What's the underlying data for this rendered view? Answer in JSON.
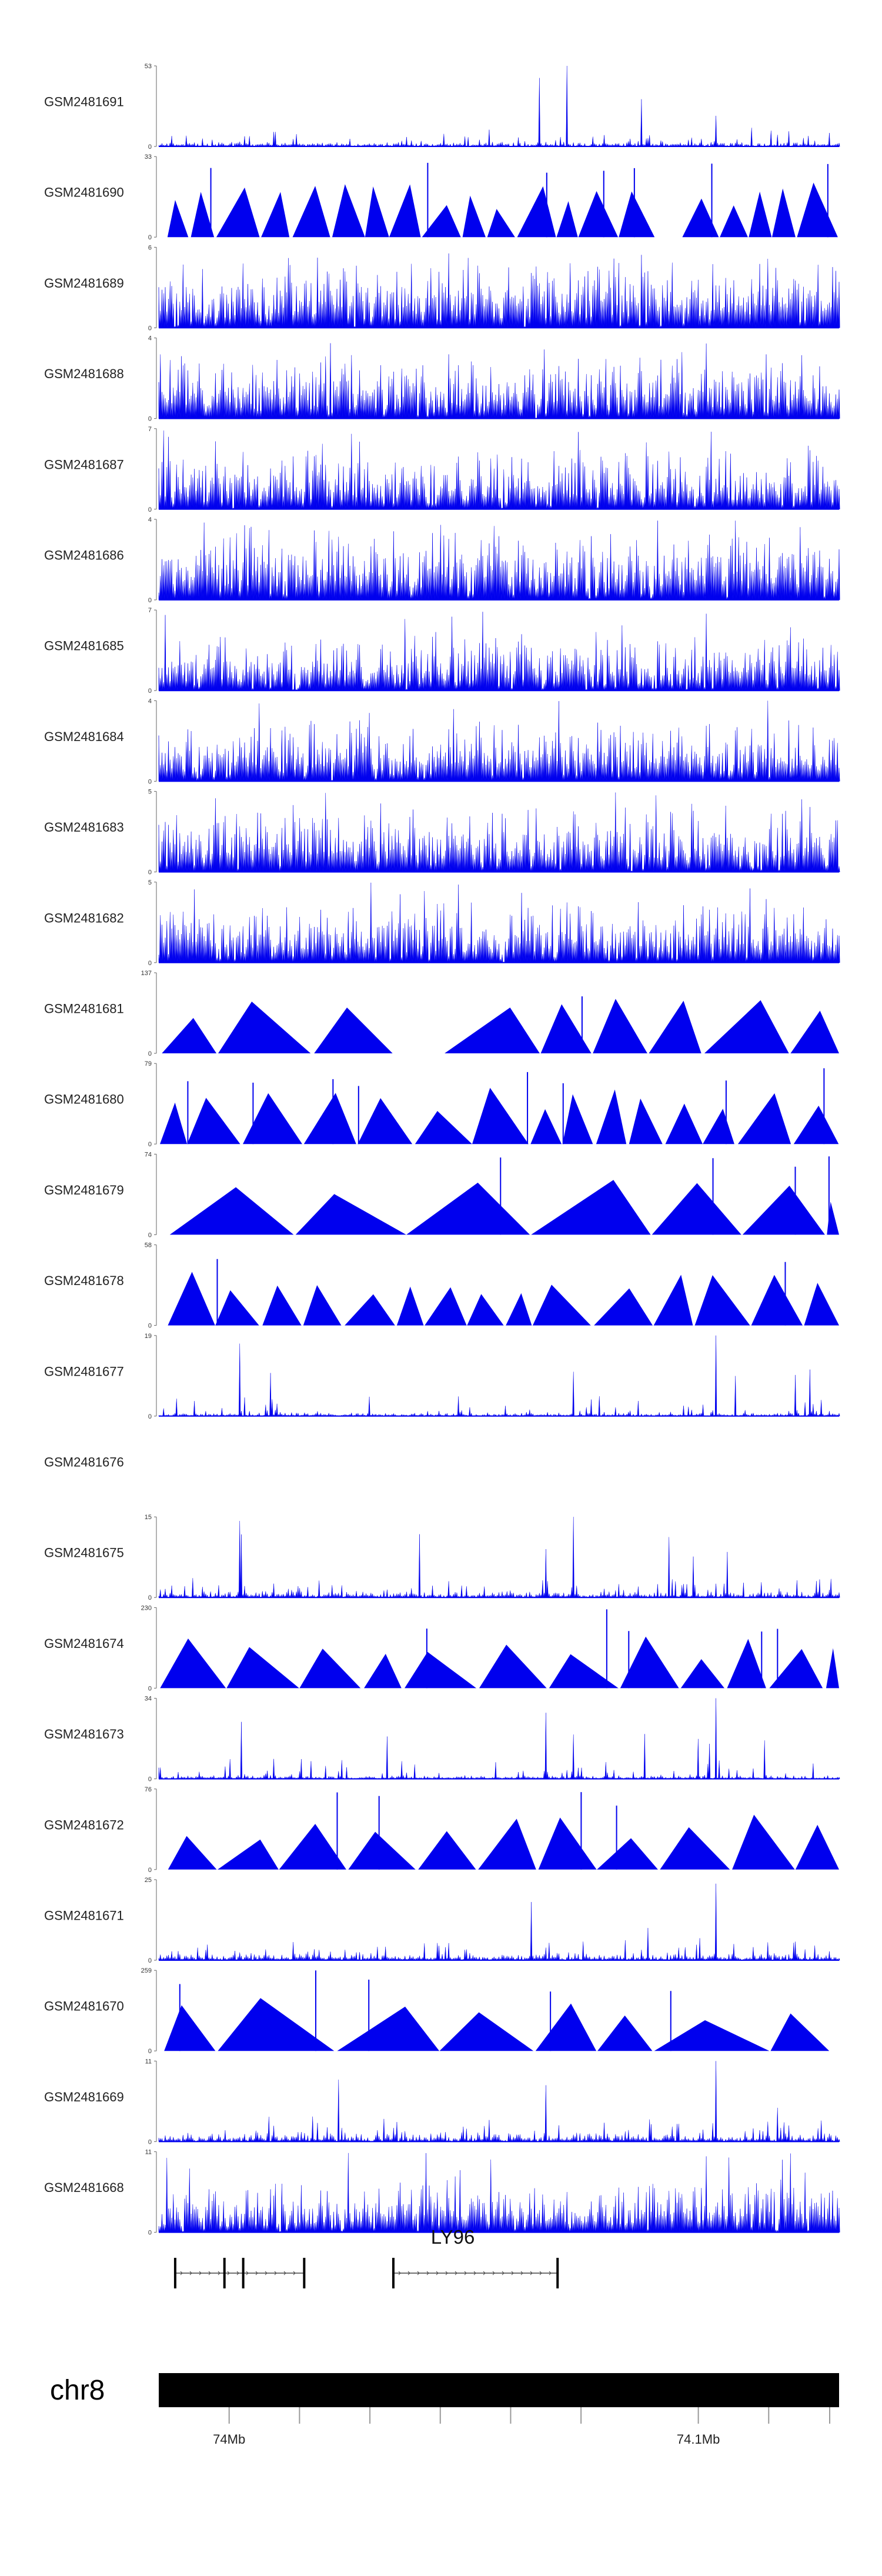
{
  "chart_data": {
    "type": "area",
    "title": "",
    "color": "#0000ee",
    "region": {
      "chrom": "chr8",
      "start": 73985000,
      "end": 74130000
    },
    "tracks": [
      {
        "name": "GSM2481691",
        "ymax": "53",
        "style": "peaks",
        "seed": 11,
        "base": 0.1,
        "noise": 0.12,
        "spikes": [
          [
            0.56,
            0.85
          ],
          [
            0.6,
            1.0
          ],
          [
            0.82,
            0.38
          ],
          [
            0.17,
            0.18
          ]
        ]
      },
      {
        "name": "GSM2481690",
        "ymax": "33",
        "style": "tri",
        "seed": 12,
        "n": 22,
        "gaps": [
          0.72,
          0.76
        ]
      },
      {
        "name": "GSM2481689",
        "ymax": "6",
        "style": "dense",
        "seed": 13,
        "base": 0.35,
        "noise": 0.55
      },
      {
        "name": "GSM2481688",
        "ymax": "4",
        "style": "dense",
        "seed": 14,
        "base": 0.3,
        "noise": 0.55
      },
      {
        "name": "GSM2481687",
        "ymax": "7",
        "style": "dense",
        "seed": 15,
        "base": 0.25,
        "noise": 0.55
      },
      {
        "name": "GSM2481686",
        "ymax": "4",
        "style": "dense",
        "seed": 16,
        "base": 0.4,
        "noise": 0.55
      },
      {
        "name": "GSM2481685",
        "ymax": "7",
        "style": "dense",
        "seed": 17,
        "base": 0.25,
        "noise": 0.5
      },
      {
        "name": "GSM2481684",
        "ymax": "4",
        "style": "dense",
        "seed": 18,
        "base": 0.25,
        "noise": 0.55
      },
      {
        "name": "GSM2481683",
        "ymax": "5",
        "style": "dense",
        "seed": 19,
        "base": 0.35,
        "noise": 0.5
      },
      {
        "name": "GSM2481682",
        "ymax": "5",
        "style": "dense",
        "seed": 20,
        "base": 0.3,
        "noise": 0.5
      },
      {
        "name": "GSM2481681",
        "ymax": "137",
        "style": "tri",
        "seed": 21,
        "n": 10,
        "gaps": [
          0.28,
          0.42
        ]
      },
      {
        "name": "GSM2481680",
        "ymax": "79",
        "style": "tri",
        "seed": 22,
        "n": 16,
        "gaps": []
      },
      {
        "name": "GSM2481679",
        "ymax": "74",
        "style": "tri",
        "seed": 23,
        "n": 7,
        "gaps": []
      },
      {
        "name": "GSM2481678",
        "ymax": "58",
        "style": "tri",
        "seed": 24,
        "n": 16,
        "gaps": []
      },
      {
        "name": "GSM2481677",
        "ymax": "19",
        "style": "peaks",
        "seed": 25,
        "base": 0.06,
        "noise": 0.12,
        "spikes": [
          [
            0.12,
            0.9
          ],
          [
            0.82,
            1.0
          ],
          [
            0.61,
            0.55
          ]
        ]
      },
      {
        "name": "GSM2481676",
        "ymax": "",
        "style": "empty",
        "seed": 26
      },
      {
        "name": "GSM2481675",
        "ymax": "15",
        "style": "peaks",
        "seed": 27,
        "base": 0.1,
        "noise": 0.22,
        "spikes": [
          [
            0.12,
            0.95
          ],
          [
            0.61,
            1.0
          ],
          [
            0.75,
            0.75
          ],
          [
            0.57,
            0.6
          ]
        ]
      },
      {
        "name": "GSM2481674",
        "ymax": "230",
        "style": "tri",
        "seed": 28,
        "n": 13,
        "gaps": []
      },
      {
        "name": "GSM2481673",
        "ymax": "34",
        "style": "peaks",
        "seed": 29,
        "base": 0.06,
        "noise": 0.12,
        "spikes": [
          [
            0.57,
            0.82
          ],
          [
            0.61,
            0.55
          ],
          [
            0.82,
            1.0
          ]
        ]
      },
      {
        "name": "GSM2481672",
        "ymax": "76",
        "style": "tri",
        "seed": 30,
        "n": 13,
        "gaps": []
      },
      {
        "name": "GSM2481671",
        "ymax": "25",
        "style": "peaks",
        "seed": 31,
        "base": 0.1,
        "noise": 0.25,
        "spikes": [
          [
            0.82,
            0.95
          ],
          [
            0.72,
            0.4
          ]
        ]
      },
      {
        "name": "GSM2481670",
        "ymax": "259",
        "style": "tri",
        "seed": 32,
        "n": 8,
        "gaps": []
      },
      {
        "name": "GSM2481669",
        "ymax": "11",
        "style": "peaks",
        "seed": 33,
        "base": 0.1,
        "noise": 0.35,
        "spikes": [
          [
            0.57,
            0.7
          ],
          [
            0.82,
            1.0
          ]
        ]
      },
      {
        "name": "GSM2481668",
        "ymax": "11",
        "style": "dense",
        "seed": 34,
        "base": 0.2,
        "noise": 0.5
      }
    ],
    "gene": {
      "name": "LY96",
      "transcripts": [
        {
          "start": 73988500,
          "end": 74016000,
          "exons": [
            73988500,
            73999000,
            74003000,
            74016000
          ]
        },
        {
          "start": 74035000,
          "end": 74070000,
          "exons": [
            74035000,
            74070000
          ]
        }
      ]
    },
    "ideogram": {
      "chrom": "chr8",
      "ticks": [
        {
          "pos": 74000000,
          "label": "74Mb"
        },
        {
          "pos": 74015000,
          "label": ""
        },
        {
          "pos": 74030000,
          "label": ""
        },
        {
          "pos": 74045000,
          "label": ""
        },
        {
          "pos": 74060000,
          "label": ""
        },
        {
          "pos": 74075000,
          "label": ""
        },
        {
          "pos": 74100000,
          "label": "74.1Mb"
        },
        {
          "pos": 74115000,
          "label": ""
        },
        {
          "pos": 74128000,
          "label": ""
        }
      ]
    }
  }
}
